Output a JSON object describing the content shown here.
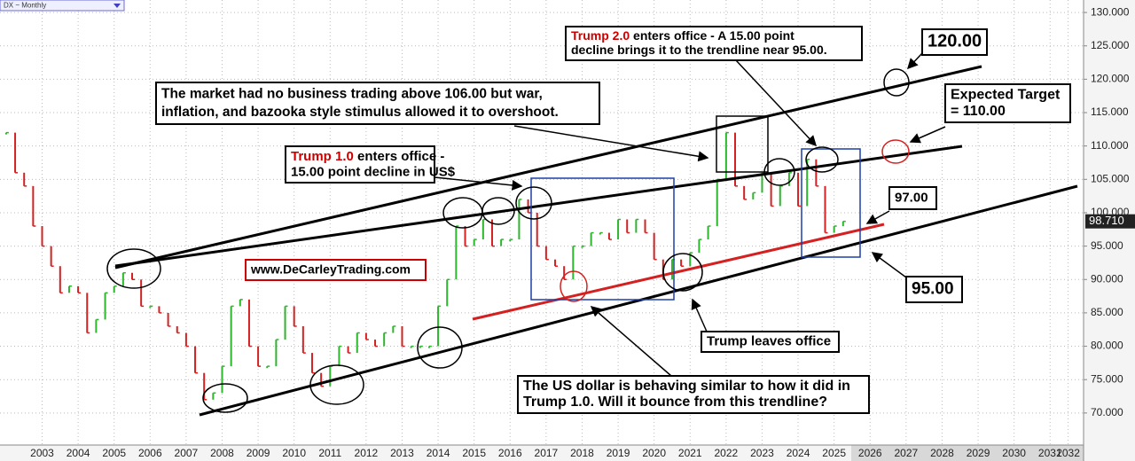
{
  "chart_data": {
    "type": "price-bars",
    "symbol_label": "DX ~ Monthly",
    "x": [
      2002.5,
      2002.75,
      2003.0,
      2003.25,
      2003.5,
      2003.75,
      2004.0,
      2004.25,
      2004.5,
      2004.75,
      2005.0,
      2005.25,
      2005.5,
      2005.75,
      2006.0,
      2006.25,
      2006.5,
      2006.75,
      2007.0,
      2007.25,
      2007.5,
      2007.75,
      2008.0,
      2008.25,
      2008.5,
      2008.75,
      2009.0,
      2009.25,
      2009.5,
      2009.75,
      2010.0,
      2010.25,
      2010.5,
      2010.75,
      2011.0,
      2011.25,
      2011.5,
      2011.75,
      2012.0,
      2012.25,
      2012.5,
      2012.75,
      2013.0,
      2013.25,
      2013.5,
      2013.75,
      2014.0,
      2014.25,
      2014.5,
      2014.75,
      2015.0,
      2015.25,
      2015.5,
      2015.75,
      2016.0,
      2016.25,
      2016.5,
      2016.75,
      2017.0,
      2017.25,
      2017.5,
      2017.75,
      2018.0,
      2018.25,
      2018.5,
      2018.75,
      2019.0,
      2019.25,
      2019.5,
      2019.75,
      2020.0,
      2020.25,
      2020.5,
      2020.75,
      2021.0,
      2021.25,
      2021.5,
      2021.75,
      2022.0,
      2022.25,
      2022.5,
      2022.75,
      2023.0,
      2023.25,
      2023.5,
      2023.75,
      2024.0,
      2024.25,
      2024.5,
      2024.75,
      2025.0,
      2025.25,
      2025.5,
      2025.75
    ],
    "values": [
      112,
      106,
      104,
      98,
      95,
      92,
      88,
      89,
      88,
      82,
      84,
      88,
      89,
      91,
      90,
      86,
      86,
      85,
      83,
      82,
      80,
      76,
      72,
      73,
      77,
      86,
      87,
      80,
      77,
      77,
      81,
      86,
      83,
      79,
      76,
      74,
      77,
      80,
      79,
      82,
      81,
      80,
      82,
      83,
      80,
      80,
      80,
      80,
      86,
      90,
      98,
      95,
      96,
      99,
      95,
      96,
      96,
      102,
      100,
      95,
      93,
      92,
      90,
      95,
      95,
      97,
      97,
      96,
      99,
      97,
      99,
      97,
      93,
      90,
      93,
      92,
      94,
      96,
      98,
      105,
      112,
      104,
      102,
      103,
      106,
      101,
      104,
      106,
      101,
      108,
      104,
      97,
      98,
      98.71
    ],
    "up_color": "#2db52d",
    "down_color": "#d42020",
    "last_price": {
      "value": 98.71,
      "label": "98.710"
    },
    "xlim": [
      2002.33,
      2032.43
    ],
    "xticks": [
      {
        "value": 2003.5,
        "label": "2003"
      },
      {
        "value": 2004.5,
        "label": "2004"
      },
      {
        "value": 2005.5,
        "label": "2005"
      },
      {
        "value": 2006.5,
        "label": "2006"
      },
      {
        "value": 2007.5,
        "label": "2007"
      },
      {
        "value": 2008.5,
        "label": "2008"
      },
      {
        "value": 2009.5,
        "label": "2009"
      },
      {
        "value": 2010.5,
        "label": "2010"
      },
      {
        "value": 2011.5,
        "label": "2011"
      },
      {
        "value": 2012.5,
        "label": "2012"
      },
      {
        "value": 2013.5,
        "label": "2013"
      },
      {
        "value": 2014.5,
        "label": "2014"
      },
      {
        "value": 2015.5,
        "label": "2015"
      },
      {
        "value": 2016.5,
        "label": "2016"
      },
      {
        "value": 2017.5,
        "label": "2017"
      },
      {
        "value": 2018.5,
        "label": "2018"
      },
      {
        "value": 2019.5,
        "label": "2019"
      },
      {
        "value": 2020.5,
        "label": "2020"
      },
      {
        "value": 2021.5,
        "label": "2021"
      },
      {
        "value": 2022.5,
        "label": "2022"
      },
      {
        "value": 2023.5,
        "label": "2023"
      },
      {
        "value": 2024.5,
        "label": "2024"
      },
      {
        "value": 2025.5,
        "label": "2025"
      },
      {
        "value": 2026.5,
        "label": "2026"
      },
      {
        "value": 2027.5,
        "label": "2027"
      },
      {
        "value": 2028.5,
        "label": "2028"
      },
      {
        "value": 2029.5,
        "label": "2029"
      },
      {
        "value": 2030.5,
        "label": "2030"
      },
      {
        "value": 2031.5,
        "label": "2031"
      },
      {
        "value": 2032.0,
        "label": "2032"
      }
    ],
    "ylim": [
      65.2,
      131.87
    ],
    "yticks": [
      {
        "value": 70,
        "label": "70.000"
      },
      {
        "value": 75,
        "label": "75.000"
      },
      {
        "value": 80,
        "label": "80.000"
      },
      {
        "value": 85,
        "label": "85.000"
      },
      {
        "value": 90,
        "label": "90.000"
      },
      {
        "value": 95,
        "label": "95.000"
      },
      {
        "value": 100,
        "label": "100.000"
      },
      {
        "value": 105,
        "label": "105.000"
      },
      {
        "value": 110,
        "label": "110.000"
      },
      {
        "value": 115,
        "label": "115.000"
      },
      {
        "value": 120,
        "label": "120.000"
      },
      {
        "value": 125,
        "label": "125.000"
      },
      {
        "value": 130,
        "label": "130.000"
      }
    ],
    "grid": true,
    "annotations": [
      {
        "lines": [
          [
            {
              "text": "120.00"
            }
          ]
        ]
      },
      {
        "lines": [
          [
            {
              "text": "Trump 2.0",
              "color": "#cc0000"
            },
            {
              "text": " enters office - A 15.00 point"
            }
          ],
          [
            {
              "text": "decline brings it to the trendline near 95.00."
            }
          ]
        ]
      },
      {
        "lines": [
          [
            {
              "text": "The market had no business trading above 106.00 but war,"
            }
          ],
          [
            {
              "text": "inflation, and bazooka style stimulus allowed it to overshoot."
            }
          ]
        ]
      },
      {
        "lines": [
          [
            {
              "text": "Expected Target"
            }
          ],
          [
            {
              "text": "= 110.00"
            }
          ]
        ]
      },
      {
        "lines": [
          [
            {
              "text": "Trump 1.0",
              "color": "#cc0000"
            },
            {
              "text": " enters office -"
            }
          ],
          [
            {
              "text": "15.00 point decline in US$"
            }
          ]
        ]
      },
      {
        "lines": [
          [
            {
              "text": "97.00"
            }
          ]
        ]
      },
      {
        "lines": [
          [
            {
              "text": "www.DeCarleyTrading.com"
            }
          ]
        ]
      },
      {
        "lines": [
          [
            {
              "text": "95.00"
            }
          ]
        ]
      },
      {
        "lines": [
          [
            {
              "text": "Trump leaves office"
            }
          ]
        ]
      },
      {
        "lines": [
          [
            {
              "text": "The US dollar is behaving similar to how it did in"
            }
          ],
          [
            {
              "text": "Trump 1.0. Will it bounce from this trendline?"
            }
          ]
        ]
      }
    ]
  }
}
